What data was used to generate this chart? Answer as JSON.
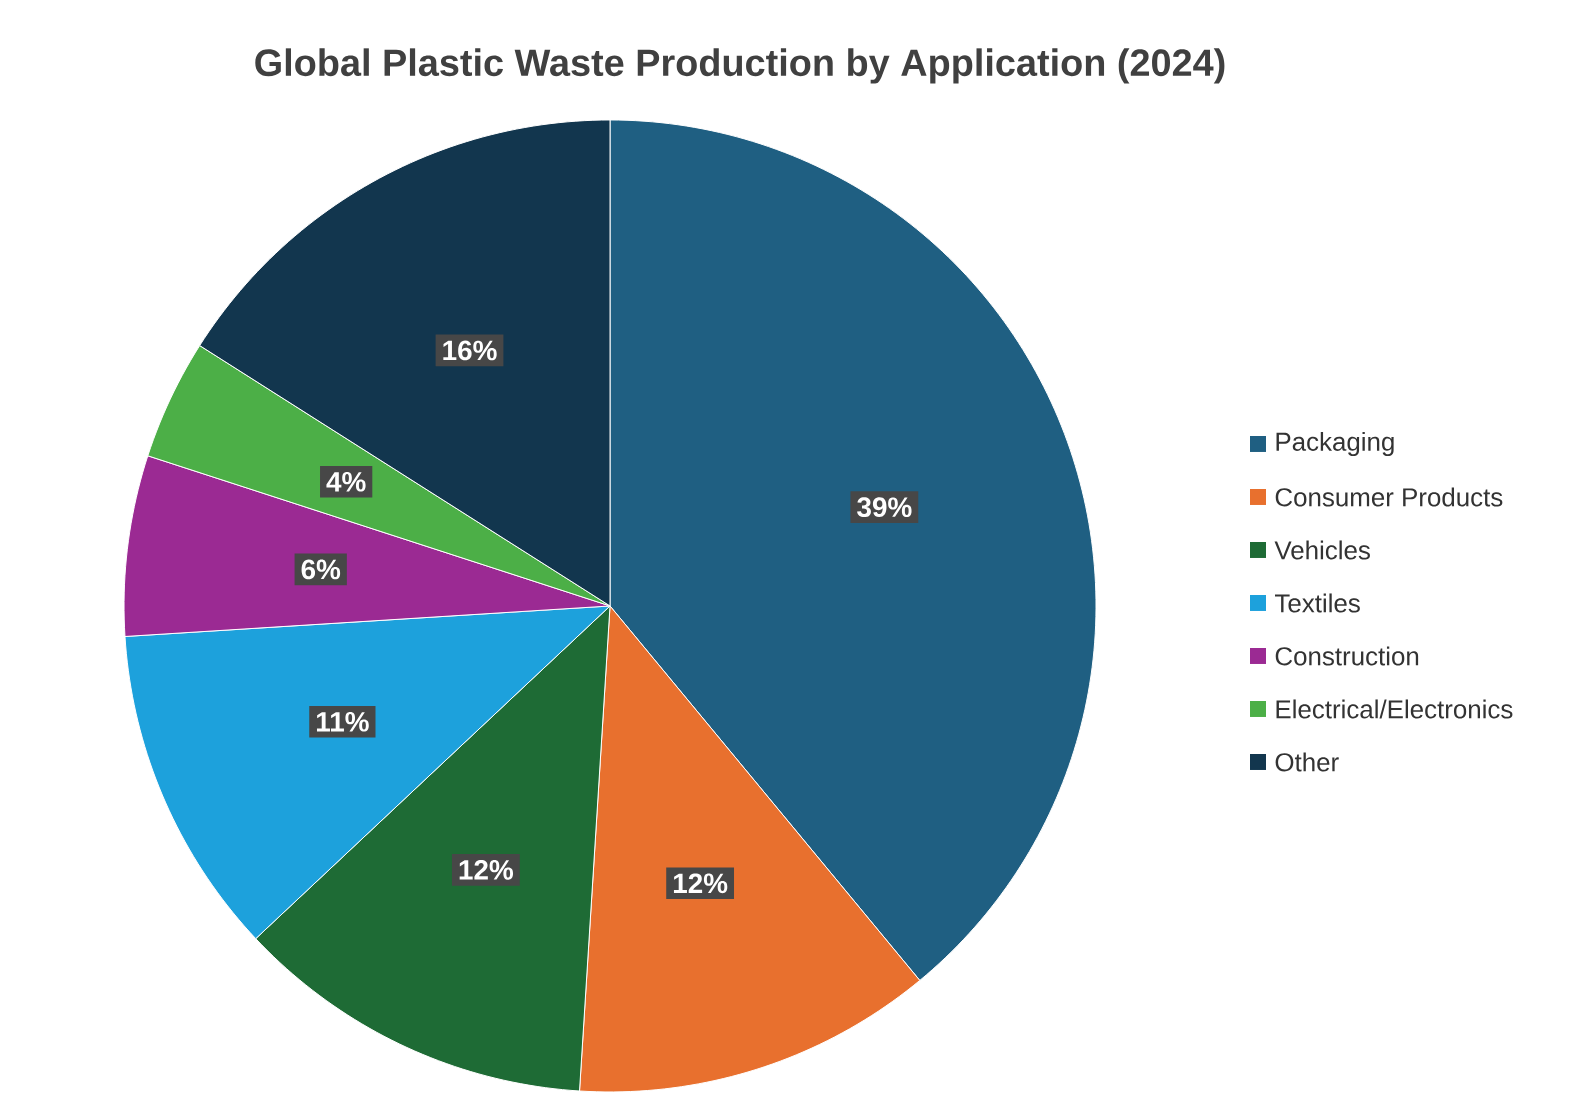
{
  "chart_data": {
    "type": "pie",
    "title": "Global Plastic Waste Production by Application (2024)",
    "categories": [
      "Packaging",
      "Consumer Products",
      "Vehicles",
      "Textiles",
      "Construction",
      "Electrical/Electronics",
      "Other"
    ],
    "values": [
      39,
      12,
      12,
      11,
      6,
      4,
      16
    ],
    "colors": [
      "#1f5f82",
      "#e8702e",
      "#1e6b35",
      "#1da1dc",
      "#9b2a93",
      "#4caf47",
      "#12364e"
    ],
    "value_labels": [
      "39%",
      "12%",
      "12%",
      "11%",
      "6%",
      "4%",
      "16%"
    ],
    "legend": "right"
  }
}
